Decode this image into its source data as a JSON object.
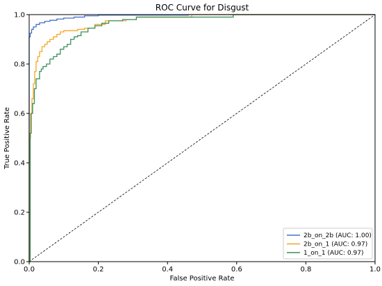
{
  "chart_data": {
    "type": "line",
    "title": "ROC Curve for Disgust",
    "xlabel": "False Positive Rate",
    "ylabel": "True Positive Rate",
    "xlim": [
      0.0,
      1.0
    ],
    "ylim": [
      0.0,
      1.0
    ],
    "x_ticks": [
      "0.0",
      "0.2",
      "0.4",
      "0.6",
      "0.8",
      "1.0"
    ],
    "y_ticks": [
      "0.0",
      "0.2",
      "0.4",
      "0.6",
      "0.8",
      "1.0"
    ],
    "grid": false,
    "legend_position": "lower-right",
    "series": [
      {
        "name": "2b_on_2b (AUC: 1.00)",
        "color": "#4472c4",
        "points": [
          [
            0.0,
            0.0
          ],
          [
            0.0,
            0.91
          ],
          [
            0.003,
            0.925
          ],
          [
            0.007,
            0.94
          ],
          [
            0.012,
            0.95
          ],
          [
            0.02,
            0.96
          ],
          [
            0.03,
            0.967
          ],
          [
            0.045,
            0.973
          ],
          [
            0.06,
            0.977
          ],
          [
            0.08,
            0.982
          ],
          [
            0.1,
            0.986
          ],
          [
            0.13,
            0.99
          ],
          [
            0.16,
            0.995
          ],
          [
            0.2,
            0.998
          ],
          [
            0.3,
            0.998
          ],
          [
            0.46,
            1.0
          ],
          [
            1.0,
            1.0
          ]
        ]
      },
      {
        "name": "2b_on_1 (AUC: 0.97)",
        "color": "#f5a623",
        "points": [
          [
            0.0,
            0.0
          ],
          [
            0.002,
            0.5
          ],
          [
            0.004,
            0.6
          ],
          [
            0.008,
            0.66
          ],
          [
            0.012,
            0.72
          ],
          [
            0.016,
            0.77
          ],
          [
            0.02,
            0.81
          ],
          [
            0.025,
            0.83
          ],
          [
            0.03,
            0.85
          ],
          [
            0.037,
            0.87
          ],
          [
            0.045,
            0.88
          ],
          [
            0.052,
            0.89
          ],
          [
            0.06,
            0.9
          ],
          [
            0.07,
            0.91
          ],
          [
            0.08,
            0.92
          ],
          [
            0.09,
            0.93
          ],
          [
            0.1,
            0.935
          ],
          [
            0.13,
            0.935
          ],
          [
            0.14,
            0.94
          ],
          [
            0.16,
            0.945
          ],
          [
            0.19,
            0.96
          ],
          [
            0.22,
            0.975
          ],
          [
            0.28,
            0.98
          ],
          [
            0.31,
            0.99
          ],
          [
            0.46,
            0.99
          ],
          [
            0.47,
            1.0
          ],
          [
            1.0,
            1.0
          ]
        ]
      },
      {
        "name": "1_on_1 (AUC: 0.97)",
        "color": "#3a8f5c",
        "points": [
          [
            0.0,
            0.0
          ],
          [
            0.003,
            0.52
          ],
          [
            0.006,
            0.6
          ],
          [
            0.01,
            0.64
          ],
          [
            0.015,
            0.7
          ],
          [
            0.02,
            0.74
          ],
          [
            0.03,
            0.77
          ],
          [
            0.035,
            0.78
          ],
          [
            0.04,
            0.79
          ],
          [
            0.05,
            0.8
          ],
          [
            0.06,
            0.82
          ],
          [
            0.07,
            0.83
          ],
          [
            0.08,
            0.84
          ],
          [
            0.09,
            0.86
          ],
          [
            0.1,
            0.87
          ],
          [
            0.11,
            0.88
          ],
          [
            0.12,
            0.9
          ],
          [
            0.13,
            0.91
          ],
          [
            0.14,
            0.915
          ],
          [
            0.15,
            0.93
          ],
          [
            0.17,
            0.945
          ],
          [
            0.19,
            0.955
          ],
          [
            0.21,
            0.965
          ],
          [
            0.23,
            0.975
          ],
          [
            0.27,
            0.98
          ],
          [
            0.31,
            0.99
          ],
          [
            0.58,
            0.99
          ],
          [
            0.59,
            1.0
          ],
          [
            1.0,
            1.0
          ]
        ]
      }
    ],
    "reference_line": {
      "points": [
        [
          0.0,
          0.0
        ],
        [
          1.0,
          1.0
        ]
      ],
      "style": "dashed",
      "color": "#000000"
    }
  }
}
